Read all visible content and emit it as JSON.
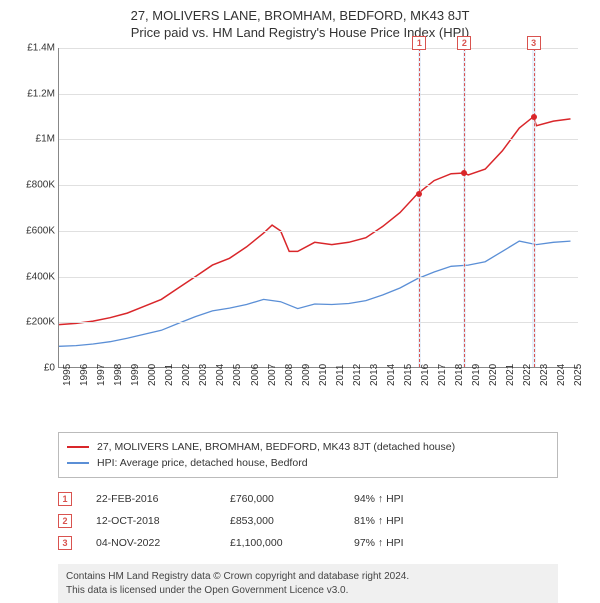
{
  "title": "27, MOLIVERS LANE, BROMHAM, BEDFORD, MK43 8JT",
  "subtitle": "Price paid vs. HM Land Registry's House Price Index (HPI)",
  "chart": {
    "type": "line",
    "xlim": [
      1995,
      2025.5
    ],
    "ylim": [
      0,
      1400000
    ],
    "ytick_step": 200000,
    "yticks": [
      "£0",
      "£200K",
      "£400K",
      "£600K",
      "£800K",
      "£1M",
      "£1.2M",
      "£1.4M"
    ],
    "xticks": [
      1995,
      1996,
      1997,
      1998,
      1999,
      2000,
      2001,
      2002,
      2003,
      2004,
      2005,
      2006,
      2007,
      2008,
      2009,
      2010,
      2011,
      2012,
      2013,
      2014,
      2015,
      2016,
      2017,
      2018,
      2019,
      2020,
      2021,
      2022,
      2023,
      2024,
      2025
    ],
    "grid_color": "#e0e0e0",
    "background_color": "#ffffff",
    "series": {
      "property": {
        "label": "27, MOLIVERS LANE, BROMHAM, BEDFORD, MK43 8JT (detached house)",
        "color": "#d9262a",
        "line_width": 1.5,
        "data": [
          [
            1995,
            190000
          ],
          [
            1996,
            195000
          ],
          [
            1997,
            205000
          ],
          [
            1998,
            220000
          ],
          [
            1999,
            240000
          ],
          [
            2000,
            270000
          ],
          [
            2001,
            300000
          ],
          [
            2002,
            350000
          ],
          [
            2003,
            400000
          ],
          [
            2004,
            450000
          ],
          [
            2005,
            480000
          ],
          [
            2006,
            530000
          ],
          [
            2007,
            590000
          ],
          [
            2007.5,
            625000
          ],
          [
            2008,
            600000
          ],
          [
            2008.5,
            510000
          ],
          [
            2009,
            510000
          ],
          [
            2010,
            550000
          ],
          [
            2011,
            540000
          ],
          [
            2012,
            550000
          ],
          [
            2013,
            570000
          ],
          [
            2014,
            620000
          ],
          [
            2015,
            680000
          ],
          [
            2016,
            760000
          ],
          [
            2017,
            820000
          ],
          [
            2018,
            850000
          ],
          [
            2018.78,
            853000
          ],
          [
            2019,
            845000
          ],
          [
            2020,
            870000
          ],
          [
            2021,
            950000
          ],
          [
            2022,
            1050000
          ],
          [
            2022.84,
            1100000
          ],
          [
            2023,
            1060000
          ],
          [
            2024,
            1080000
          ],
          [
            2025,
            1090000
          ]
        ]
      },
      "hpi": {
        "label": "HPI: Average price, detached house, Bedford",
        "color": "#5b8fd6",
        "line_width": 1.3,
        "data": [
          [
            1995,
            95000
          ],
          [
            1996,
            98000
          ],
          [
            1997,
            105000
          ],
          [
            1998,
            115000
          ],
          [
            1999,
            130000
          ],
          [
            2000,
            148000
          ],
          [
            2001,
            165000
          ],
          [
            2002,
            195000
          ],
          [
            2003,
            225000
          ],
          [
            2004,
            250000
          ],
          [
            2005,
            262000
          ],
          [
            2006,
            278000
          ],
          [
            2007,
            300000
          ],
          [
            2008,
            290000
          ],
          [
            2009,
            260000
          ],
          [
            2010,
            280000
          ],
          [
            2011,
            278000
          ],
          [
            2012,
            282000
          ],
          [
            2013,
            295000
          ],
          [
            2014,
            320000
          ],
          [
            2015,
            350000
          ],
          [
            2016,
            390000
          ],
          [
            2017,
            420000
          ],
          [
            2018,
            445000
          ],
          [
            2019,
            450000
          ],
          [
            2020,
            465000
          ],
          [
            2021,
            510000
          ],
          [
            2022,
            555000
          ],
          [
            2023,
            540000
          ],
          [
            2024,
            550000
          ],
          [
            2025,
            555000
          ]
        ]
      }
    },
    "bands": [
      {
        "start": 2016.05,
        "end": 2016.25
      },
      {
        "start": 2018.7,
        "end": 2018.9
      },
      {
        "start": 2022.75,
        "end": 2022.95
      }
    ],
    "sale_markers": [
      {
        "n": "1",
        "x": 2016.14
      },
      {
        "n": "2",
        "x": 2018.78
      },
      {
        "n": "3",
        "x": 2022.84
      }
    ],
    "sale_points": [
      {
        "x": 2016.14,
        "y": 760000,
        "color": "#d9262a"
      },
      {
        "x": 2018.78,
        "y": 853000,
        "color": "#d9262a"
      },
      {
        "x": 2022.84,
        "y": 1100000,
        "color": "#d9262a"
      }
    ]
  },
  "legend": {
    "items": [
      {
        "color": "#d9262a",
        "label_path": "chart.series.property.label"
      },
      {
        "color": "#5b8fd6",
        "label_path": "chart.series.hpi.label"
      }
    ]
  },
  "sales": [
    {
      "n": "1",
      "date": "22-FEB-2016",
      "price": "£760,000",
      "rel": "94% ↑ HPI"
    },
    {
      "n": "2",
      "date": "12-OCT-2018",
      "price": "£853,000",
      "rel": "81% ↑ HPI"
    },
    {
      "n": "3",
      "date": "04-NOV-2022",
      "price": "£1,100,000",
      "rel": "97% ↑ HPI"
    }
  ],
  "footer": {
    "line1": "Contains HM Land Registry data © Crown copyright and database right 2024.",
    "line2": "This data is licensed under the Open Government Licence v3.0."
  }
}
